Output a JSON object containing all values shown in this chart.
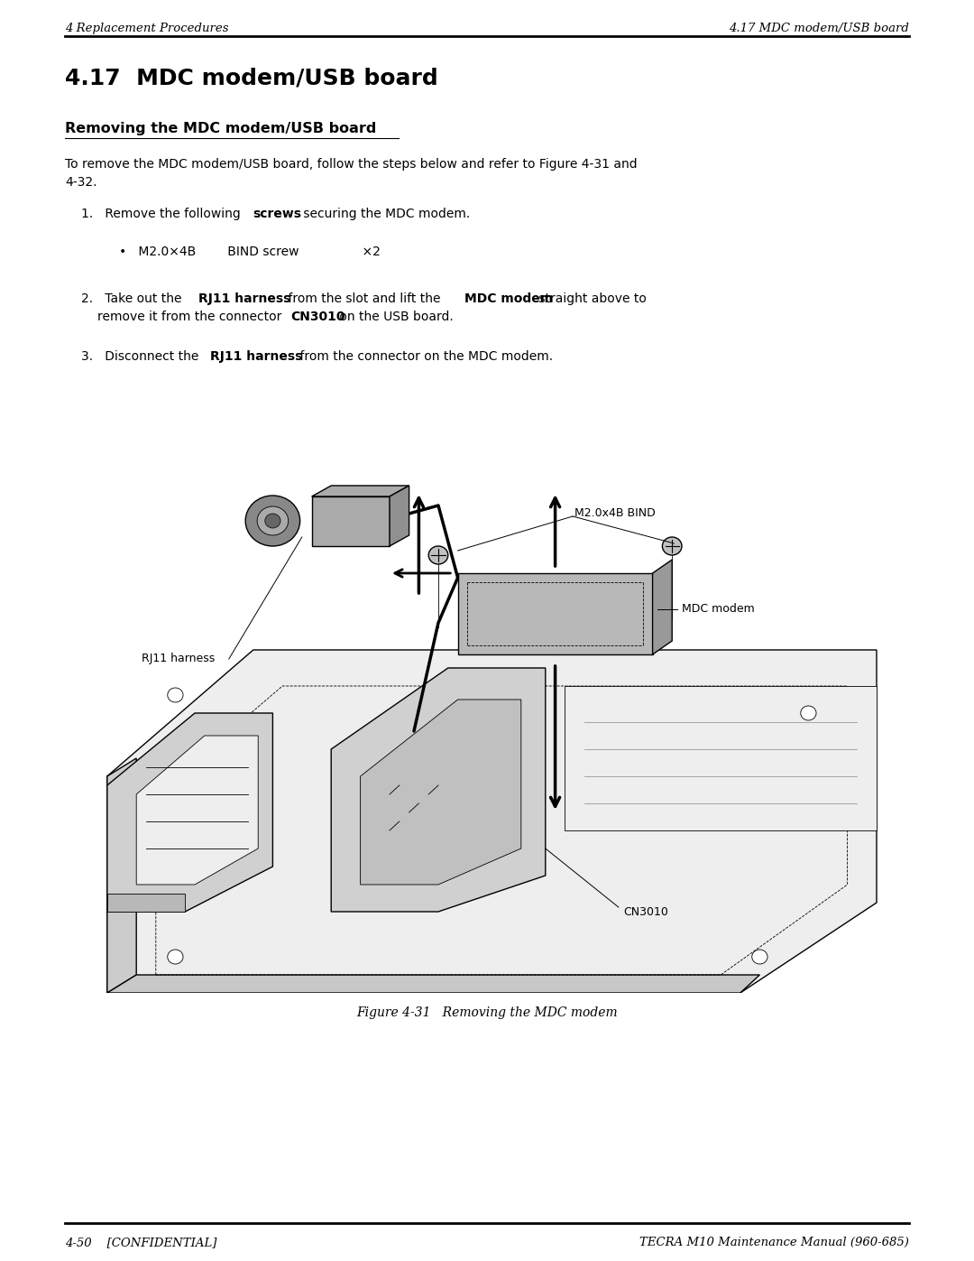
{
  "page_width": 10.8,
  "page_height": 13.97,
  "bg_color": "#ffffff",
  "header_left": "4 Replacement Procedures",
  "header_right": "4.17 MDC modem/USB board",
  "footer_left": "4-50    [CONFIDENTIAL]",
  "footer_right": "TECRA M10 Maintenance Manual (960-685)",
  "section_title": "4.17  MDC modem/USB board",
  "subsection_title": "Removing the MDC modem/USB board",
  "figure_caption": "Figure 4-31   Removing the MDC modem",
  "label_m2": "M2.0x4B BIND",
  "label_rj11": "RJ11 harness",
  "label_mdc": "MDC modem",
  "label_cn3010": "CN3010"
}
